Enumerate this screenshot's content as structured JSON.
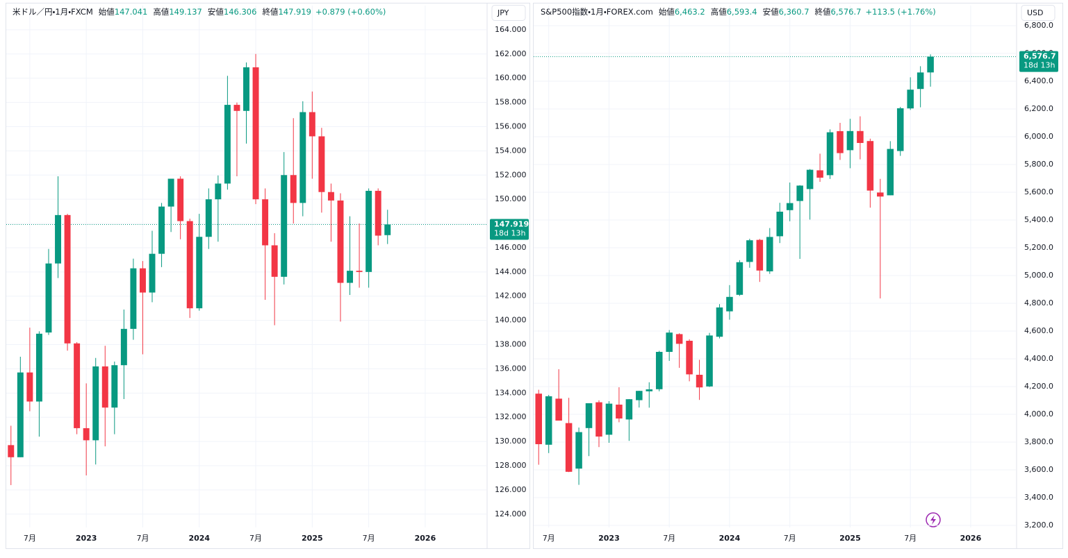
{
  "chart_data": [
    {
      "type": "candlestick",
      "title": "米ドル／円・1月・FXCM",
      "ohlc_header": [
        {
          "label": "始値",
          "value": "147.041"
        },
        {
          "label": "高値",
          "value": "149.137"
        },
        {
          "label": "安値",
          "value": "146.306"
        },
        {
          "label": "終値",
          "value": "147.919"
        }
      ],
      "change": "+0.879 (+0.60%)",
      "currency": "JPY",
      "up_color": "#089981",
      "down_color": "#f23645",
      "x": [
        "2022-05",
        "2022-06",
        "2022-07",
        "2022-08",
        "2022-09",
        "2022-10",
        "2022-11",
        "2022-12",
        "2023-01",
        "2023-02",
        "2023-03",
        "2023-04",
        "2023-05",
        "2023-06",
        "2023-07",
        "2023-08",
        "2023-09",
        "2023-10",
        "2023-11",
        "2023-12",
        "2024-01",
        "2024-02",
        "2024-03",
        "2024-04",
        "2024-05",
        "2024-06",
        "2024-07",
        "2024-08",
        "2024-09",
        "2024-10",
        "2024-11",
        "2024-12",
        "2025-01",
        "2025-02",
        "2025-03",
        "2025-04",
        "2025-05",
        "2025-06",
        "2025-07",
        "2025-08",
        "2025-09"
      ],
      "open": [
        129.7,
        128.7,
        135.7,
        133.3,
        139.0,
        144.7,
        148.7,
        138.1,
        131.1,
        130.1,
        136.2,
        132.8,
        136.3,
        139.3,
        144.3,
        142.3,
        145.5,
        149.4,
        151.7,
        148.2,
        141.0,
        146.9,
        150.0,
        151.3,
        157.8,
        157.3,
        160.9,
        150.0,
        146.2,
        143.6,
        152.0,
        149.7,
        157.2,
        155.2,
        150.6,
        149.9,
        143.1,
        144.1,
        144.0,
        150.7,
        147.041
      ],
      "high": [
        131.3,
        137.0,
        139.4,
        139.1,
        145.9,
        151.9,
        148.8,
        138.2,
        134.8,
        136.9,
        137.9,
        136.6,
        140.9,
        145.1,
        144.9,
        147.4,
        149.7,
        151.7,
        151.9,
        148.4,
        148.8,
        150.9,
        151.97,
        160.2,
        157.99,
        161.3,
        162.0,
        150.9,
        147.2,
        153.9,
        156.7,
        158.1,
        158.9,
        155.9,
        151.3,
        150.5,
        148.6,
        148.0,
        150.9,
        150.9,
        149.137
      ],
      "low": [
        126.4,
        128.7,
        132.5,
        130.4,
        138.8,
        143.5,
        137.5,
        130.6,
        127.2,
        128.1,
        129.6,
        130.6,
        133.5,
        138.4,
        137.2,
        141.5,
        144.4,
        147.3,
        146.7,
        140.2,
        140.8,
        145.9,
        146.5,
        150.8,
        151.9,
        154.6,
        149.6,
        141.7,
        139.6,
        142.97,
        148.0,
        148.6,
        151.7,
        148.9,
        146.5,
        139.9,
        142.1,
        142.7,
        142.7,
        146.2,
        146.306
      ],
      "close": [
        128.7,
        135.7,
        133.3,
        138.9,
        144.7,
        148.7,
        138.1,
        131.1,
        130.1,
        136.2,
        132.8,
        136.3,
        139.3,
        144.3,
        142.3,
        145.5,
        149.4,
        151.7,
        148.2,
        141.0,
        146.9,
        150.0,
        151.3,
        157.8,
        157.3,
        160.9,
        150.0,
        146.2,
        143.6,
        152.0,
        149.7,
        157.2,
        155.2,
        150.6,
        149.9,
        143.1,
        144.1,
        144.0,
        150.7,
        147.0,
        147.919
      ],
      "xlim": [
        "2022-05",
        "2026-07"
      ],
      "xticks": [
        {
          "value": "2022-07",
          "label": "7月"
        },
        {
          "value": "2023-01",
          "label": "2023"
        },
        {
          "value": "2023-07",
          "label": "7月"
        },
        {
          "value": "2024-01",
          "label": "2024"
        },
        {
          "value": "2024-07",
          "label": "7月"
        },
        {
          "value": "2025-01",
          "label": "2025"
        },
        {
          "value": "2025-07",
          "label": "7月"
        },
        {
          "value": "2026-01",
          "label": "2026"
        }
      ],
      "ylim": [
        122.9,
        166.0
      ],
      "yticks": [
        {
          "value": 124,
          "label": "124.000"
        },
        {
          "value": 126,
          "label": "126.000"
        },
        {
          "value": 128,
          "label": "128.000"
        },
        {
          "value": 130,
          "label": "130.000"
        },
        {
          "value": 132,
          "label": "132.000"
        },
        {
          "value": 134,
          "label": "134.000"
        },
        {
          "value": 136,
          "label": "136.000"
        },
        {
          "value": 138,
          "label": "138.000"
        },
        {
          "value": 140,
          "label": "140.000"
        },
        {
          "value": 142,
          "label": "142.000"
        },
        {
          "value": 144,
          "label": "144.000"
        },
        {
          "value": 146,
          "label": "146.000"
        },
        {
          "value": 148,
          "label": "148.000"
        },
        {
          "value": 150,
          "label": "150.000"
        },
        {
          "value": 152,
          "label": "152.000"
        },
        {
          "value": 154,
          "label": "154.000"
        },
        {
          "value": 156,
          "label": "156.000"
        },
        {
          "value": 158,
          "label": "158.000"
        },
        {
          "value": 160,
          "label": "160.000"
        },
        {
          "value": 162,
          "label": "162.000"
        },
        {
          "value": 164,
          "label": "164.000"
        }
      ],
      "grid": true,
      "last_price": {
        "value": 147.919,
        "label": "147.919"
      },
      "countdown": "18d 13h"
    },
    {
      "type": "candlestick",
      "title": "S&P500指数・1月・FOREX.com",
      "ohlc_header": [
        {
          "label": "始値",
          "value": "6,463.2"
        },
        {
          "label": "高値",
          "value": "6,593.4"
        },
        {
          "label": "安値",
          "value": "6,360.7"
        },
        {
          "label": "終値",
          "value": "6,576.7"
        }
      ],
      "change": "+113.5 (+1.76%)",
      "currency": "USD",
      "up_color": "#089981",
      "down_color": "#f23645",
      "x": [
        "2022-06",
        "2022-07",
        "2022-08",
        "2022-09",
        "2022-10",
        "2022-11",
        "2022-12",
        "2023-01",
        "2023-02",
        "2023-03",
        "2023-04",
        "2023-05",
        "2023-06",
        "2023-07",
        "2023-08",
        "2023-09",
        "2023-10",
        "2023-11",
        "2023-12",
        "2024-01",
        "2024-02",
        "2024-03",
        "2024-04",
        "2024-05",
        "2024-06",
        "2024-07",
        "2024-08",
        "2024-09",
        "2024-10",
        "2024-11",
        "2024-12",
        "2025-01",
        "2025-02",
        "2025-03",
        "2025-04",
        "2025-05",
        "2025-06",
        "2025-07",
        "2025-08",
        "2025-09"
      ],
      "open": [
        4149,
        3781,
        4113,
        3937,
        3609,
        3901,
        4087,
        3853,
        4070,
        3963,
        4102,
        4166,
        4181,
        4450,
        4578,
        4530,
        4285,
        4201,
        4559,
        4742,
        4861,
        5098,
        5257,
        5030,
        5283,
        5471,
        5537,
        5623,
        5758,
        5723,
        6040,
        5903,
        6041,
        5969,
        5598,
        5578,
        5897,
        6204,
        6344,
        6463.2
      ],
      "high": [
        4177,
        4140,
        4325,
        4119,
        3905,
        4080,
        4101,
        4095,
        4195,
        4110,
        4170,
        4231,
        4458,
        4607,
        4584,
        4541,
        4393,
        4587,
        4794,
        4931,
        5111,
        5265,
        5264,
        5342,
        5524,
        5670,
        5651,
        5767,
        5878,
        6053,
        6100,
        6129,
        6147,
        5986,
        5696,
        5968,
        6215,
        6428,
        6508,
        6593.4
      ],
      "low": [
        3637,
        3721,
        3955,
        3584,
        3492,
        3699,
        3764,
        3795,
        3943,
        3809,
        4049,
        4048,
        4166,
        4385,
        4335,
        4238,
        4104,
        4197,
        4547,
        4682,
        4853,
        5056,
        4954,
        5012,
        5234,
        5391,
        5120,
        5403,
        5675,
        5696,
        5833,
        5773,
        5837,
        5489,
        4835,
        5578,
        5862,
        6193,
        6212,
        6360.7
      ],
      "close": [
        3785,
        4130,
        3955,
        3586,
        3872,
        4080,
        3840,
        4077,
        3970,
        4109,
        4169,
        4180,
        4450,
        4589,
        4508,
        4288,
        4194,
        4568,
        4770,
        4846,
        5096,
        5254,
        5036,
        5278,
        5460,
        5522,
        5648,
        5762,
        5705,
        6032,
        5882,
        6041,
        5955,
        5612,
        5569,
        5912,
        6205,
        6339,
        6463,
        6576.7
      ],
      "xlim": [
        "2022-06",
        "2026-05"
      ],
      "xticks": [
        {
          "value": "2022-07",
          "label": "7月"
        },
        {
          "value": "2023-01",
          "label": "2023"
        },
        {
          "value": "2023-07",
          "label": "7月"
        },
        {
          "value": "2024-01",
          "label": "2024"
        },
        {
          "value": "2024-07",
          "label": "7月"
        },
        {
          "value": "2025-01",
          "label": "2025"
        },
        {
          "value": "2025-07",
          "label": "7月"
        },
        {
          "value": "2026-01",
          "label": "2026"
        }
      ],
      "ylim": [
        3185,
        6945
      ],
      "yticks": [
        {
          "value": 3200,
          "label": "3,200.0"
        },
        {
          "value": 3400,
          "label": "3,400.0"
        },
        {
          "value": 3600,
          "label": "3,600.0"
        },
        {
          "value": 3800,
          "label": "3,800.0"
        },
        {
          "value": 4000,
          "label": "4,000.0"
        },
        {
          "value": 4200,
          "label": "4,200.0"
        },
        {
          "value": 4400,
          "label": "4,400.0"
        },
        {
          "value": 4600,
          "label": "4,600.0"
        },
        {
          "value": 4800,
          "label": "4,800.0"
        },
        {
          "value": 5000,
          "label": "5,000.0"
        },
        {
          "value": 5200,
          "label": "5,200.0"
        },
        {
          "value": 5400,
          "label": "5,400.0"
        },
        {
          "value": 5600,
          "label": "5,600.0"
        },
        {
          "value": 5800,
          "label": "5,800.0"
        },
        {
          "value": 6000,
          "label": "6,000.0"
        },
        {
          "value": 6200,
          "label": "6,200.0"
        },
        {
          "value": 6400,
          "label": "6,400.0"
        },
        {
          "value": 6600,
          "label": "6,600.0"
        },
        {
          "value": 6800,
          "label": "6,800.0"
        }
      ],
      "grid": true,
      "last_price": {
        "value": 6576.7,
        "label": "6,576.7"
      },
      "countdown": "18d 13h"
    }
  ]
}
